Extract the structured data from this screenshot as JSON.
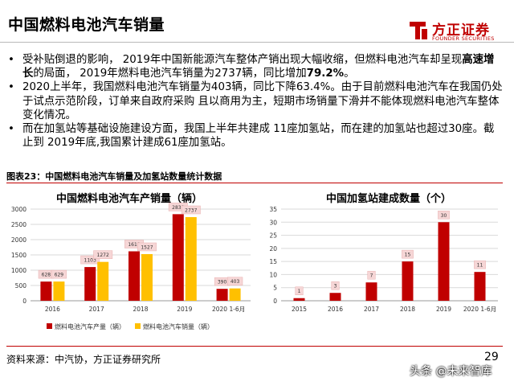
{
  "header": {
    "title": "中国燃料电池汽车销量",
    "logo_name": "方正证券",
    "logo_sub": "FOUNDER SECURITIES"
  },
  "bullets": [
    {
      "parts": [
        {
          "text": "受补贴倒退的影响， 2019年中国新能源汽车整体产销出现大幅收缩，但燃料电池汽车却呈现",
          "bold": false
        },
        {
          "text": "高速增长",
          "bold": true
        },
        {
          "text": "的局面， 2019年燃料电池汽车销量为2737辆，同比增加",
          "bold": false
        },
        {
          "text": "79.2%",
          "bold": true
        },
        {
          "text": "。",
          "bold": false
        }
      ]
    },
    {
      "parts": [
        {
          "text": "2020上半年，我国燃料电池汽车销量为403辆，同比下降63.4%。由于目前燃料电池汽车在我国仍处于试点示范阶段，订单来自政府采购 且以商用为主，短期市场销量下滑并不能体现燃料电池汽车整体变化情况。",
          "bold": false
        }
      ]
    },
    {
      "parts": [
        {
          "text": "而在加氢站等基础设施建设方面，我国上半年共建成 11座加氢站，而在建的加氢站也超过30座。截止到 2019年底,我国累计建成61座加氢站。",
          "bold": false
        }
      ]
    }
  ],
  "figure_title": "图表23：中国燃料电池汽车销量及加氢站数量统计数据",
  "source": "资料来源：中汽协，方正证券研究所",
  "page_number": "29",
  "watermark": "头条 @未来智库",
  "colors": {
    "brand_red": "#c00000",
    "production": "#c00000",
    "sales": "#ffc000",
    "stations": "#c00000"
  },
  "chart_data": [
    {
      "type": "bar",
      "title": "中国燃料电池汽车产销量（辆）",
      "categories": [
        "2016",
        "2017",
        "2018",
        "2019",
        "2020 1-6月"
      ],
      "series": [
        {
          "name": "燃料电池汽车产量（辆）",
          "values": [
            628,
            1103,
            1618,
            2833,
            390
          ]
        },
        {
          "name": "燃料电池汽车销量（辆）",
          "values": [
            629,
            1272,
            1527,
            2737,
            403
          ]
        }
      ],
      "yticks": [
        0,
        500,
        1000,
        1500,
        2000,
        2500,
        3000
      ],
      "ylim": [
        0,
        3000
      ],
      "grid": true,
      "legend": "bottom"
    },
    {
      "type": "bar",
      "title": "中国加氢站建成数量（个）",
      "categories": [
        "2015",
        "2016",
        "2017",
        "2018",
        "2019",
        "2020 1-6月"
      ],
      "series": [
        {
          "values": [
            1,
            3,
            7,
            15,
            30,
            11
          ]
        }
      ],
      "yticks": [
        0,
        5,
        10,
        15,
        20,
        25,
        30,
        35
      ],
      "ylim": [
        0,
        35
      ],
      "grid": true,
      "legend": "none"
    }
  ]
}
